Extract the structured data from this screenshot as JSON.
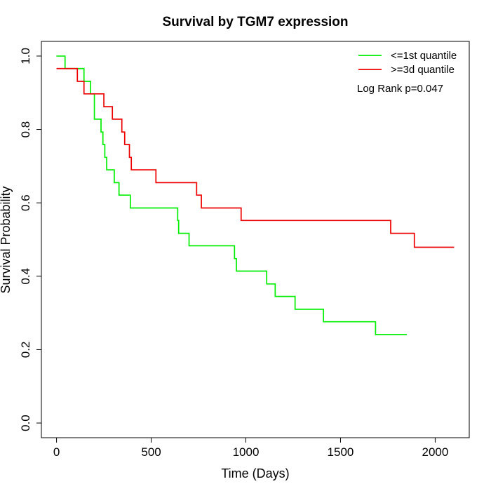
{
  "chart_data": {
    "type": "line",
    "title": "Survival by TGM7 expression",
    "xlabel": "Time (Days)",
    "ylabel": "Survival Probability",
    "xlim": [
      -80,
      2180
    ],
    "ylim": [
      -0.04,
      1.04
    ],
    "x_ticks": [
      0,
      500,
      1000,
      1500,
      2000
    ],
    "y_ticks": [
      0.0,
      0.2,
      0.4,
      0.6,
      0.8,
      1.0
    ],
    "x_tick_labels": [
      "0",
      "500",
      "1000",
      "1500",
      "2000"
    ],
    "y_tick_labels": [
      "0.0",
      "0.2",
      "0.4",
      "0.6",
      "0.8",
      "1.0"
    ],
    "grid": false,
    "legend_position": "top-right",
    "annotation": "Log Rank p=0.047",
    "series": [
      {
        "name": "<=1st quantile",
        "color": "#00ee00",
        "step": true,
        "x": [
          0,
          45,
          145,
          180,
          200,
          235,
          245,
          255,
          265,
          290,
          305,
          330,
          390,
          640,
          645,
          650,
          700,
          940,
          950,
          960,
          1110,
          1155,
          1260,
          1410,
          1685,
          1850
        ],
        "y": [
          1.0,
          0.966,
          0.931,
          0.897,
          0.828,
          0.793,
          0.759,
          0.724,
          0.69,
          0.69,
          0.655,
          0.621,
          0.586,
          0.552,
          0.517,
          0.517,
          0.483,
          0.448,
          0.414,
          0.414,
          0.379,
          0.345,
          0.31,
          0.276,
          0.241,
          0.241
        ]
      },
      {
        "name": ">=3d quantile",
        "color": "#ee0000",
        "step": true,
        "x": [
          0,
          110,
          145,
          250,
          295,
          345,
          360,
          385,
          395,
          525,
          740,
          765,
          975,
          1765,
          1890,
          2100
        ],
        "y": [
          0.966,
          0.931,
          0.897,
          0.862,
          0.828,
          0.793,
          0.759,
          0.724,
          0.69,
          0.655,
          0.621,
          0.586,
          0.552,
          0.517,
          0.479,
          0.479
        ]
      }
    ]
  }
}
